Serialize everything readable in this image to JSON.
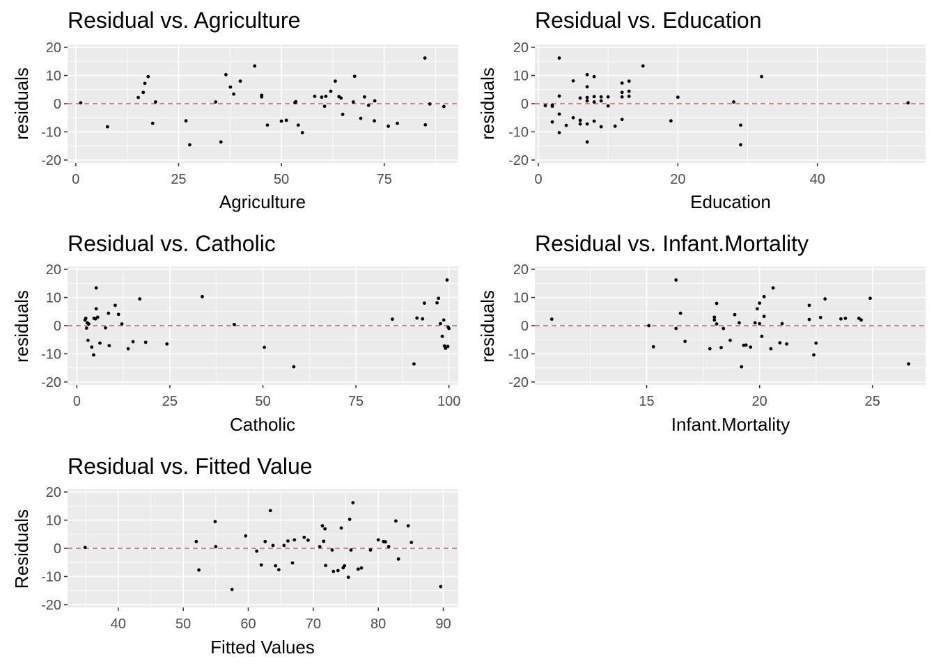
{
  "chart_data": [
    {
      "type": "scatter",
      "title": "Residual vs. Agriculture",
      "xlabel": "Agriculture",
      "ylabel": "residuals",
      "xlim": [
        -2,
        93
      ],
      "ylim": [
        -21,
        21
      ],
      "xticks": [
        0,
        25,
        50,
        75
      ],
      "yticks": [
        -20,
        -10,
        0,
        10,
        20
      ],
      "reference_line": {
        "y": 0,
        "style": "dashed",
        "color": "#cd5c5c"
      },
      "grid": true,
      "points": [
        [
          1.2,
          0.3
        ],
        [
          7.7,
          -8.2
        ],
        [
          15.2,
          2.2
        ],
        [
          16.4,
          4.0
        ],
        [
          16.8,
          7.2
        ],
        [
          17.6,
          9.6
        ],
        [
          18.7,
          -7.0
        ],
        [
          19.4,
          0.6
        ],
        [
          26.8,
          -6.1
        ],
        [
          27.7,
          -14.6
        ],
        [
          34.0,
          0.6
        ],
        [
          35.3,
          -13.6
        ],
        [
          36.5,
          10.3
        ],
        [
          37.6,
          5.9
        ],
        [
          38.4,
          3.4
        ],
        [
          40.0,
          8.0
        ],
        [
          43.5,
          13.4
        ],
        [
          45.2,
          2.4
        ],
        [
          45.2,
          3.0
        ],
        [
          46.6,
          -7.6
        ],
        [
          50.0,
          -6.2
        ],
        [
          51.2,
          -5.9
        ],
        [
          53.3,
          0.4
        ],
        [
          53.5,
          0.7
        ],
        [
          54.1,
          -7.6
        ],
        [
          55.1,
          -10.3
        ],
        [
          58.1,
          2.6
        ],
        [
          59.8,
          2.3
        ],
        [
          60.5,
          -0.9
        ],
        [
          60.8,
          2.6
        ],
        [
          62.0,
          4.4
        ],
        [
          63.1,
          8.0
        ],
        [
          64.0,
          2.5
        ],
        [
          64.5,
          2.0
        ],
        [
          64.9,
          -3.8
        ],
        [
          67.5,
          0.6
        ],
        [
          67.8,
          9.7
        ],
        [
          69.3,
          -5.2
        ],
        [
          70.2,
          2.4
        ],
        [
          71.2,
          -0.6
        ],
        [
          72.6,
          -6.1
        ],
        [
          72.7,
          1.0
        ],
        [
          76.0,
          -8.0
        ],
        [
          78.2,
          -7.0
        ],
        [
          84.9,
          16.2
        ],
        [
          85.0,
          -7.5
        ],
        [
          86.1,
          -0.1
        ],
        [
          89.5,
          -1.0
        ]
      ]
    },
    {
      "type": "scatter",
      "title": "Residual vs. Education",
      "xlabel": "Education",
      "ylabel": "residuals",
      "xlim": [
        -0.5,
        55.5
      ],
      "ylim": [
        -21,
        21
      ],
      "xticks": [
        0,
        20,
        40
      ],
      "yticks": [
        -20,
        -10,
        0,
        10,
        20
      ],
      "reference_line": {
        "y": 0,
        "style": "dashed",
        "color": "#cd5c5c"
      },
      "grid": true,
      "points": [
        [
          1,
          -0.7
        ],
        [
          2,
          -0.5
        ],
        [
          2,
          -6.5
        ],
        [
          2,
          -0.9
        ],
        [
          3,
          16.2
        ],
        [
          3,
          -10.3
        ],
        [
          3,
          2.7
        ],
        [
          3,
          -3.7
        ],
        [
          4,
          -7.7
        ],
        [
          5,
          -5.0
        ],
        [
          5,
          8.1
        ],
        [
          6,
          -5.9
        ],
        [
          6,
          -7.2
        ],
        [
          6,
          2.0
        ],
        [
          7,
          10.3
        ],
        [
          7,
          2.2
        ],
        [
          7,
          -7.2
        ],
        [
          7,
          -13.6
        ],
        [
          7,
          6.0
        ],
        [
          7,
          1.0
        ],
        [
          8,
          0.6
        ],
        [
          8,
          9.6
        ],
        [
          8,
          -6.2
        ],
        [
          8,
          2.5
        ],
        [
          9,
          -8.2
        ],
        [
          9,
          2.4
        ],
        [
          9,
          1.0
        ],
        [
          10,
          2.4
        ],
        [
          10,
          -0.8
        ],
        [
          11,
          -8.0
        ],
        [
          12,
          7.3
        ],
        [
          12,
          4.0
        ],
        [
          12,
          2.4
        ],
        [
          12,
          -5.6
        ],
        [
          13,
          8.0
        ],
        [
          13,
          4.4
        ],
        [
          13,
          2.6
        ],
        [
          15,
          13.4
        ],
        [
          19,
          -6.1
        ],
        [
          20,
          2.3
        ],
        [
          28,
          0.6
        ],
        [
          29,
          -7.6
        ],
        [
          29,
          -14.6
        ],
        [
          32,
          9.6
        ],
        [
          53,
          0.3
        ]
      ]
    },
    {
      "type": "scatter",
      "title": "Residual vs. Catholic",
      "xlabel": "Catholic",
      "ylabel": "residuals",
      "xlim": [
        -2.5,
        102.5
      ],
      "ylim": [
        -21,
        21
      ],
      "xticks": [
        0,
        25,
        50,
        75,
        100
      ],
      "yticks": [
        -20,
        -10,
        0,
        10,
        20
      ],
      "reference_line": {
        "y": 0,
        "style": "dashed",
        "color": "#cd5c5c"
      },
      "grid": true,
      "points": [
        [
          2.2,
          2.0
        ],
        [
          2.4,
          2.6
        ],
        [
          2.6,
          -0.9
        ],
        [
          2.8,
          1.0
        ],
        [
          3.0,
          -5.2
        ],
        [
          3.2,
          0.6
        ],
        [
          4.0,
          -7.6
        ],
        [
          4.5,
          -10.4
        ],
        [
          4.6,
          2.6
        ],
        [
          5.0,
          2.4
        ],
        [
          5.2,
          6.0
        ],
        [
          5.2,
          13.4
        ],
        [
          5.6,
          3.0
        ],
        [
          6.2,
          -6.2
        ],
        [
          7.7,
          -0.8
        ],
        [
          8.5,
          4.4
        ],
        [
          8.7,
          -7.1
        ],
        [
          10.3,
          7.2
        ],
        [
          11.2,
          4.0
        ],
        [
          12.1,
          0.6
        ],
        [
          13.8,
          -8.2
        ],
        [
          15.1,
          -5.7
        ],
        [
          16.9,
          9.5
        ],
        [
          18.5,
          -5.9
        ],
        [
          24.2,
          -6.5
        ],
        [
          33.7,
          10.3
        ],
        [
          42.3,
          0.4
        ],
        [
          50.4,
          -7.7
        ],
        [
          58.3,
          -14.6
        ],
        [
          84.8,
          2.3
        ],
        [
          90.6,
          -13.6
        ],
        [
          91.4,
          2.7
        ],
        [
          92.9,
          2.4
        ],
        [
          93.4,
          8.0
        ],
        [
          96.8,
          8.1
        ],
        [
          97.2,
          9.7
        ],
        [
          97.7,
          0.7
        ],
        [
          98.2,
          -3.8
        ],
        [
          98.6,
          2.0
        ],
        [
          98.8,
          -7.2
        ],
        [
          99.1,
          -8.0
        ],
        [
          99.5,
          16.2
        ],
        [
          99.7,
          -7.4
        ],
        [
          99.8,
          -0.5
        ],
        [
          100,
          -1.0
        ]
      ]
    },
    {
      "type": "scatter",
      "title": "Residual vs. Infant.Mortality",
      "xlabel": "Infant.Mortality",
      "ylabel": "residuals",
      "xlim": [
        10.05,
        27.35
      ],
      "ylim": [
        -21,
        21
      ],
      "xticks": [
        15,
        20,
        25
      ],
      "yticks": [
        -20,
        -10,
        0,
        10,
        20
      ],
      "reference_line": {
        "y": 0,
        "style": "dashed",
        "color": "#cd5c5c"
      },
      "grid": true,
      "points": [
        [
          10.8,
          2.3
        ],
        [
          15.1,
          0.0
        ],
        [
          15.3,
          -7.5
        ],
        [
          16.3,
          16.2
        ],
        [
          16.3,
          -1.0
        ],
        [
          16.5,
          4.4
        ],
        [
          16.7,
          -5.6
        ],
        [
          17.8,
          -8.2
        ],
        [
          18.0,
          3.0
        ],
        [
          18.0,
          2.0
        ],
        [
          18.1,
          0.6
        ],
        [
          18.1,
          7.9
        ],
        [
          18.3,
          -7.8
        ],
        [
          18.4,
          -1.0
        ],
        [
          18.7,
          -5.2
        ],
        [
          18.9,
          3.9
        ],
        [
          19.1,
          1.0
        ],
        [
          19.2,
          -14.6
        ],
        [
          19.3,
          -7.0
        ],
        [
          19.4,
          -6.9
        ],
        [
          19.6,
          -7.6
        ],
        [
          19.8,
          1.0
        ],
        [
          19.9,
          6.0
        ],
        [
          20.0,
          0.7
        ],
        [
          20.0,
          8.0
        ],
        [
          20.1,
          -3.8
        ],
        [
          20.2,
          10.3
        ],
        [
          20.2,
          3.3
        ],
        [
          20.5,
          -8.2
        ],
        [
          20.6,
          13.4
        ],
        [
          20.9,
          -6.1
        ],
        [
          21.0,
          0.7
        ],
        [
          21.2,
          -6.5
        ],
        [
          22.2,
          7.2
        ],
        [
          22.2,
          2.2
        ],
        [
          22.4,
          -10.4
        ],
        [
          22.5,
          -6.2
        ],
        [
          22.7,
          2.9
        ],
        [
          22.9,
          9.5
        ],
        [
          23.6,
          2.4
        ],
        [
          23.8,
          2.6
        ],
        [
          24.4,
          2.6
        ],
        [
          24.5,
          2.0
        ],
        [
          24.9,
          9.7
        ],
        [
          26.6,
          -13.6
        ]
      ]
    },
    {
      "type": "scatter",
      "title": "Residual vs. Fitted Value",
      "xlabel": "Fitted Values",
      "ylabel": "Residuals",
      "xlim": [
        32.2,
        92.3
      ],
      "ylim": [
        -21,
        21
      ],
      "xticks": [
        40,
        50,
        60,
        70,
        80,
        90
      ],
      "yticks": [
        -20,
        -10,
        0,
        10,
        20
      ],
      "reference_line": {
        "y": 0,
        "style": "dashed",
        "color": "#cd5c5c"
      },
      "grid": true,
      "points": [
        [
          34.9,
          0.3
        ],
        [
          52.0,
          2.4
        ],
        [
          52.4,
          -7.7
        ],
        [
          54.9,
          9.5
        ],
        [
          55.0,
          0.6
        ],
        [
          57.5,
          -14.6
        ],
        [
          59.6,
          4.4
        ],
        [
          61.3,
          -1.0
        ],
        [
          62.0,
          -5.9
        ],
        [
          62.6,
          2.4
        ],
        [
          63.4,
          13.4
        ],
        [
          63.8,
          1.0
        ],
        [
          64.2,
          -6.2
        ],
        [
          64.7,
          -7.6
        ],
        [
          65.5,
          1.0
        ],
        [
          66.1,
          2.6
        ],
        [
          66.8,
          -5.2
        ],
        [
          67.1,
          3.0
        ],
        [
          68.6,
          3.9
        ],
        [
          69.2,
          2.9
        ],
        [
          71.0,
          0.6
        ],
        [
          71.4,
          8.0
        ],
        [
          71.6,
          2.5
        ],
        [
          71.8,
          6.9
        ],
        [
          71.9,
          -6.1
        ],
        [
          72.9,
          -0.6
        ],
        [
          73.1,
          -8.2
        ],
        [
          73.8,
          -7.9
        ],
        [
          74.3,
          7.2
        ],
        [
          74.6,
          -6.9
        ],
        [
          74.8,
          -6.2
        ],
        [
          75.4,
          -10.3
        ],
        [
          75.6,
          10.3
        ],
        [
          75.8,
          -0.6
        ],
        [
          76.1,
          16.2
        ],
        [
          76.9,
          -7.4
        ],
        [
          77.4,
          -7.0
        ],
        [
          78.8,
          -0.6
        ],
        [
          80.0,
          3.0
        ],
        [
          80.8,
          2.4
        ],
        [
          81.1,
          2.3
        ],
        [
          81.6,
          0.6
        ],
        [
          82.7,
          9.7
        ],
        [
          83.1,
          -3.8
        ],
        [
          84.6,
          8.0
        ],
        [
          85.1,
          2.1
        ],
        [
          89.6,
          -13.6
        ]
      ]
    }
  ]
}
